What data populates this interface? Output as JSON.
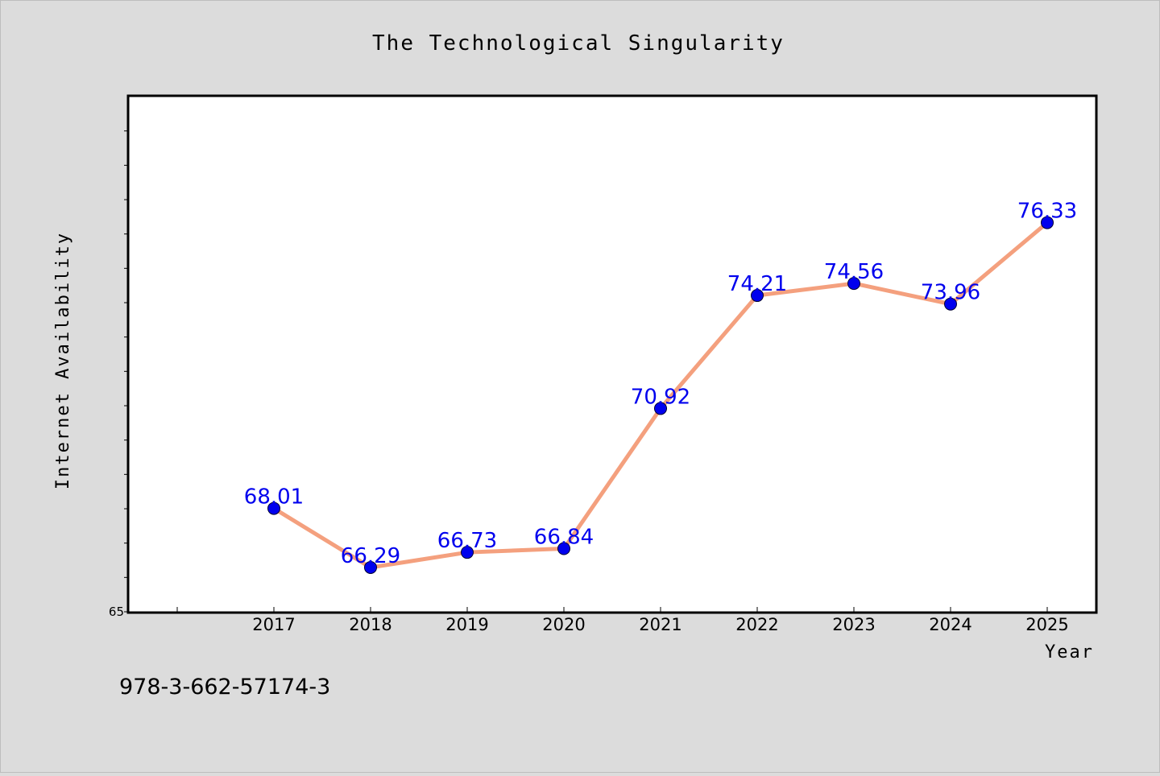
{
  "chart_data": {
    "type": "line",
    "title": "The Technological Singularity",
    "xlabel": "Year",
    "ylabel": "Internet Availability",
    "categories": [
      "2017",
      "2018",
      "2019",
      "2020",
      "2021",
      "2022",
      "2023",
      "2024",
      "2025"
    ],
    "series": [
      {
        "values": [
          68.01,
          66.29,
          66.73,
          66.84,
          70.92,
          74.21,
          74.56,
          73.96,
          76.33
        ],
        "line_color": "#f4a07e",
        "marker_color": "#0000ee"
      }
    ],
    "data_labels": [
      "68.01",
      "66.29",
      "66.73",
      "66.84",
      "70.92",
      "74.21",
      "74.56",
      "73.96",
      "76.33"
    ],
    "ylim": [
      65,
      80
    ],
    "ytick_labels": [
      "65"
    ],
    "grid": false,
    "legend": "none"
  },
  "footer": {
    "isbn": "978-3-662-57174-3"
  },
  "colors": {
    "background": "#dcdcdc",
    "plot_background": "#ffffff",
    "line": "#f4a07e",
    "marker": "#0000ee",
    "label": "#0000ee"
  }
}
